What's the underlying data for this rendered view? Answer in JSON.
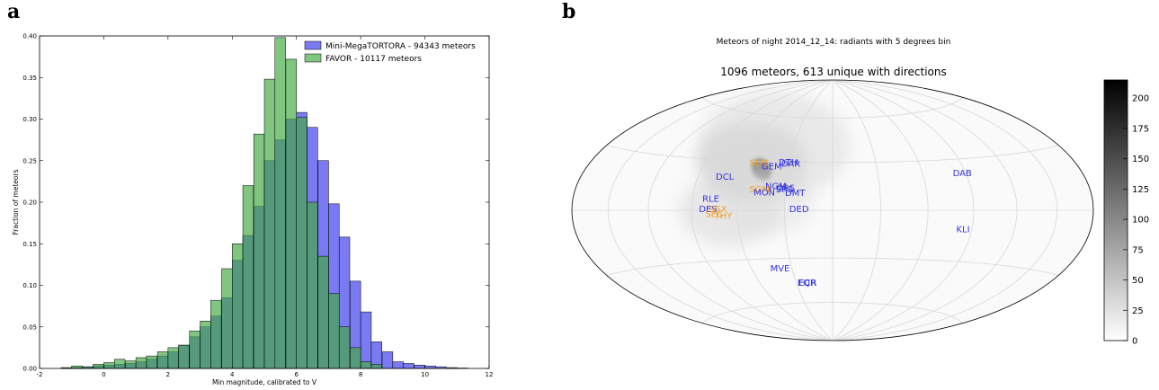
{
  "panel_a_letter": "a",
  "panel_b_letter": "b",
  "chart_data": [
    {
      "type": "bar",
      "subtype": "overlapping-histogram",
      "xlabel": "Min magnitude, calibrated to V",
      "ylabel": "Fraction of meteors",
      "xlim": [
        -2,
        12
      ],
      "ylim": [
        0,
        0.4
      ],
      "xticks": [
        "-2",
        "0",
        "2",
        "4",
        "6",
        "8",
        "10",
        "12"
      ],
      "yticks": [
        "0.00",
        "0.05",
        "0.10",
        "0.15",
        "0.20",
        "0.25",
        "0.30",
        "0.35",
        "0.40"
      ],
      "bin_width": 0.33,
      "x": [
        -2.0,
        -1.67,
        -1.33,
        -1.0,
        -0.67,
        -0.33,
        0.0,
        0.33,
        0.67,
        1.0,
        1.33,
        1.67,
        2.0,
        2.33,
        2.67,
        3.0,
        3.33,
        3.67,
        4.0,
        4.33,
        4.67,
        5.0,
        5.33,
        5.67,
        6.0,
        6.33,
        6.67,
        7.0,
        7.33,
        7.67,
        8.0,
        8.33,
        8.67,
        9.0,
        9.33,
        9.67,
        10.0,
        10.33,
        10.67,
        11.0
      ],
      "legend_position": "top-right",
      "series": [
        {
          "name": "Mini-MegaTORTORA - 94343 meteors",
          "color": "#5555ee",
          "values": [
            0.0,
            0.0,
            0.0005,
            0.001,
            0.002,
            0.003,
            0.004,
            0.005,
            0.006,
            0.008,
            0.011,
            0.015,
            0.02,
            0.028,
            0.038,
            0.05,
            0.063,
            0.085,
            0.13,
            0.16,
            0.195,
            0.25,
            0.275,
            0.3,
            0.308,
            0.29,
            0.25,
            0.198,
            0.158,
            0.105,
            0.068,
            0.032,
            0.02,
            0.008,
            0.006,
            0.004,
            0.003,
            0.002,
            0.001,
            0.0005
          ]
        },
        {
          "name": "FAVOR - 10117 meteors",
          "color": "#44aa44",
          "values": [
            0.0,
            0.0,
            0.001,
            0.003,
            0.002,
            0.005,
            0.007,
            0.011,
            0.009,
            0.013,
            0.015,
            0.02,
            0.025,
            0.028,
            0.045,
            0.057,
            0.082,
            0.12,
            0.15,
            0.22,
            0.282,
            0.348,
            0.398,
            0.372,
            0.302,
            0.2,
            0.135,
            0.09,
            0.05,
            0.025,
            0.008,
            0.005,
            0.0,
            0.0,
            0.0,
            0.0,
            0.0,
            0.0,
            0.0,
            0.0
          ]
        }
      ]
    },
    {
      "type": "heatmap",
      "projection": "aitoff-hammer",
      "title": "Meteors of night 2014_12_14: radiants with 5 degrees bin",
      "subtitle": "1096 meteors, 613 unique with directions",
      "colorbar": {
        "range": [
          0,
          215
        ],
        "ticks": [
          "0",
          "25",
          "50",
          "75",
          "100",
          "125",
          "150",
          "175",
          "200"
        ],
        "colormap": "gray_r"
      },
      "showers": [
        {
          "label": "SLM",
          "color": "#f0a020",
          "lon": -57,
          "lat": 27
        },
        {
          "label": "DCL",
          "color": "#3333dd",
          "lon": -77,
          "lat": 18
        },
        {
          "label": "RLE",
          "color": "#3333dd",
          "lon": -83,
          "lat": 5
        },
        {
          "label": "DES",
          "color": "#3333dd",
          "lon": -85,
          "lat": -1
        },
        {
          "label": "SSX",
          "color": "#f0a020",
          "lon": -78,
          "lat": -1
        },
        {
          "label": "SEC",
          "color": "#f0a020",
          "lon": -81,
          "lat": -4
        },
        {
          "label": "THY",
          "color": "#f0a020",
          "lon": -75,
          "lat": -5
        },
        {
          "label": "GEM",
          "color": "#3333dd",
          "lon": -48,
          "lat": 25
        },
        {
          "label": "DTH",
          "color": "#3333dd",
          "lon": -37,
          "lat": 28
        },
        {
          "label": "DAR",
          "color": "#3333dd",
          "lon": -35,
          "lat": 27
        },
        {
          "label": "NGM",
          "color": "#3333dd",
          "lon": -43,
          "lat": 13
        },
        {
          "label": "ORS",
          "color": "#3333dd",
          "lon": -36,
          "lat": 12
        },
        {
          "label": "SRS",
          "color": "#3333dd",
          "lon": -36,
          "lat": 11
        },
        {
          "label": "SGM",
          "color": "#f0a020",
          "lon": -53,
          "lat": 11
        },
        {
          "label": "MON",
          "color": "#3333dd",
          "lon": -50,
          "lat": 9
        },
        {
          "label": "DMT",
          "color": "#3333dd",
          "lon": -30,
          "lat": 9
        },
        {
          "label": "DED",
          "color": "#3333dd",
          "lon": -27,
          "lat": -1
        },
        {
          "label": "DAB",
          "color": "#3333dd",
          "lon": 80,
          "lat": 20
        },
        {
          "label": "KLI",
          "color": "#3333dd",
          "lon": 80,
          "lat": -13
        },
        {
          "label": "MVE",
          "color": "#3333dd",
          "lon": -47,
          "lat": -38
        },
        {
          "label": "EQR",
          "color": "#3333dd",
          "lon": -30,
          "lat": -48
        },
        {
          "label": "ECR",
          "color": "#3333dd",
          "lon": -29,
          "lat": -48
        }
      ],
      "hotspots": [
        {
          "lon": -48,
          "lat": 25,
          "value": 215,
          "spread": 6
        },
        {
          "lon": -57,
          "lat": 30,
          "value": 55,
          "spread": 22
        },
        {
          "lon": -45,
          "lat": 40,
          "value": 35,
          "spread": 30
        },
        {
          "lon": -65,
          "lat": 0,
          "value": 40,
          "spread": 20
        },
        {
          "lon": -40,
          "lat": 5,
          "value": 28,
          "spread": 18
        }
      ]
    }
  ]
}
